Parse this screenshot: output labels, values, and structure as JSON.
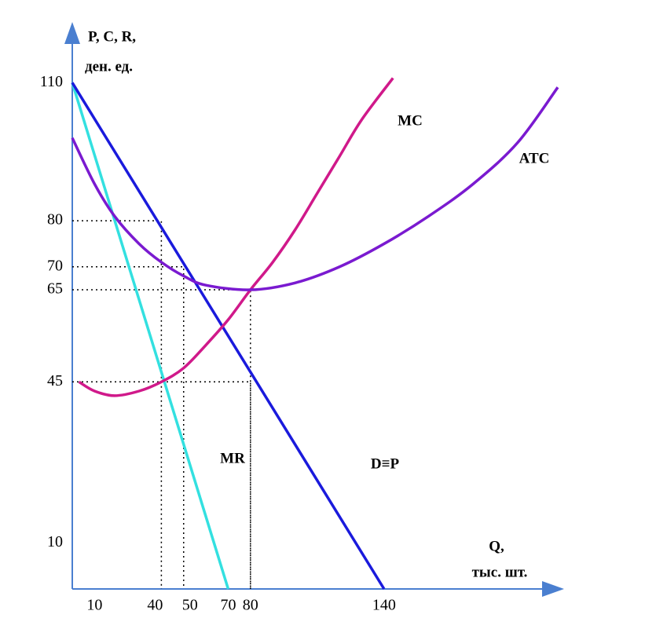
{
  "chart_data": {
    "type": "line",
    "y_label": [
      "P, C, R,",
      "ден. ед."
    ],
    "x_label": [
      "Q,",
      "тыс. шт."
    ],
    "xlim": [
      0,
      218
    ],
    "ylim": [
      0,
      122
    ],
    "xticks": [
      10,
      40,
      50,
      70,
      80,
      140
    ],
    "yticks": [
      10,
      45,
      65,
      70,
      80,
      110
    ],
    "grid": false,
    "guides": [
      [
        40,
        80
      ],
      [
        50,
        70
      ],
      [
        80,
        65
      ],
      [
        80,
        45
      ]
    ],
    "series": [
      {
        "name": "MR",
        "color": "#33e0e0",
        "x": [
          0,
          70
        ],
        "values": [
          110,
          0
        ]
      },
      {
        "name": "D≡P",
        "color": "#1a1adc",
        "x": [
          0,
          140
        ],
        "values": [
          110,
          0
        ]
      },
      {
        "name": "MC",
        "color": "#d0198a",
        "x": [
          3,
          10,
          19,
          30,
          40,
          50,
          60,
          70,
          80,
          90,
          100,
          110,
          120,
          130,
          144
        ],
        "values": [
          45,
          43,
          42,
          43,
          45,
          48,
          53,
          58.5,
          65,
          71,
          78,
          86,
          94,
          102,
          111
        ]
      },
      {
        "name": "ATC",
        "color": "#7a1ad0",
        "x": [
          0,
          10,
          19,
          30,
          40,
          50,
          60,
          80,
          100,
          120,
          140,
          160,
          180,
          200,
          218
        ],
        "values": [
          98,
          88,
          81,
          75,
          71,
          68,
          66,
          65,
          66.5,
          70,
          75,
          81,
          88,
          97,
          109
        ]
      }
    ]
  }
}
